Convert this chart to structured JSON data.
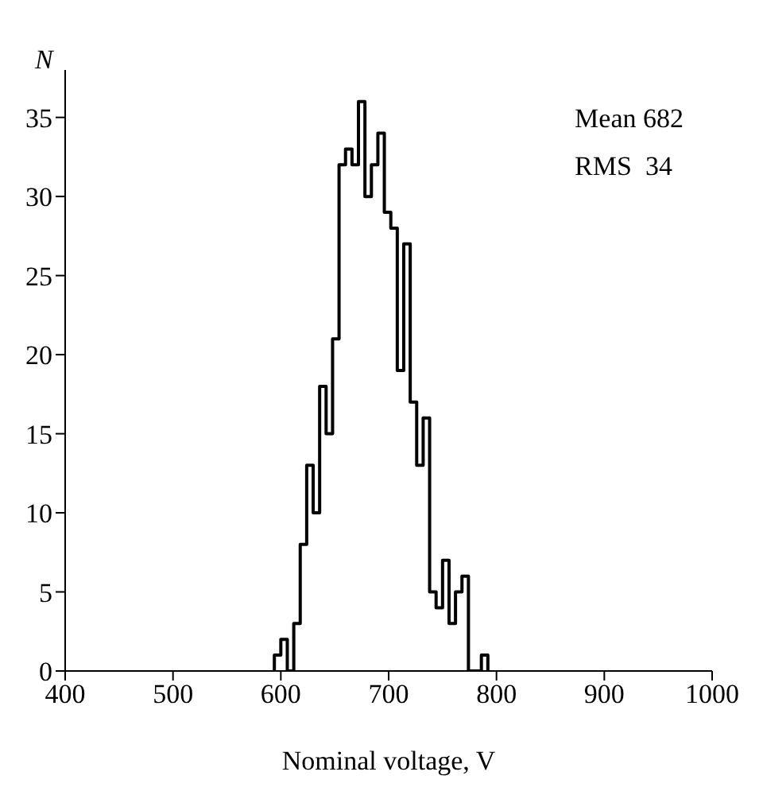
{
  "chart_data": {
    "type": "histogram",
    "xlabel": "Nominal voltage, V",
    "ylabel": "N",
    "bins": [
      594,
      600,
      606,
      612,
      618,
      624,
      630,
      636,
      642,
      648,
      654,
      660,
      666,
      672,
      678,
      684,
      690,
      696,
      702,
      708,
      714,
      720,
      726,
      732,
      738,
      744,
      750,
      756,
      762,
      768,
      774,
      780,
      786,
      792
    ],
    "values": [
      1,
      2,
      0,
      3,
      8,
      13,
      10,
      18,
      15,
      21,
      32,
      33,
      32,
      36,
      30,
      32,
      34,
      29,
      28,
      19,
      27,
      17,
      13,
      16,
      5,
      4,
      7,
      3,
      5,
      6,
      0,
      0,
      1
    ],
    "color": "#000000",
    "xlim": [
      400,
      1000
    ],
    "xticks": [
      400,
      500,
      600,
      700,
      800,
      900,
      1000
    ],
    "ylim": [
      0,
      38
    ],
    "yticks": [
      0,
      5,
      10,
      15,
      20,
      25,
      30,
      35
    ],
    "annotations": [
      "Mean 682",
      "RMS  34"
    ]
  }
}
